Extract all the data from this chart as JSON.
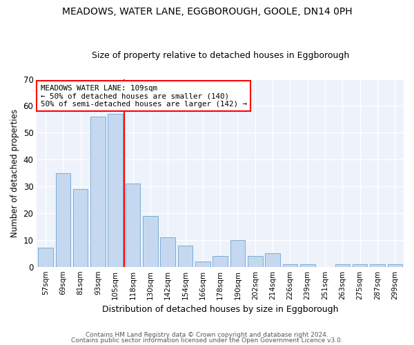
{
  "title_line1": "MEADOWS, WATER LANE, EGGBOROUGH, GOOLE, DN14 0PH",
  "title_line2": "Size of property relative to detached houses in Eggborough",
  "xlabel": "Distribution of detached houses by size in Eggborough",
  "ylabel": "Number of detached properties",
  "categories": [
    "57sqm",
    "69sqm",
    "81sqm",
    "93sqm",
    "105sqm",
    "118sqm",
    "130sqm",
    "142sqm",
    "154sqm",
    "166sqm",
    "178sqm",
    "190sqm",
    "202sqm",
    "214sqm",
    "226sqm",
    "239sqm",
    "251sqm",
    "263sqm",
    "275sqm",
    "287sqm",
    "299sqm"
  ],
  "values": [
    7,
    35,
    29,
    56,
    57,
    31,
    19,
    11,
    8,
    2,
    4,
    10,
    4,
    5,
    1,
    1,
    0,
    1,
    1,
    1,
    1
  ],
  "bar_color": "#c5d8f0",
  "bar_edge_color": "#7aadd4",
  "red_line_label": "MEADOWS WATER LANE: 109sqm",
  "annotation_line2": "← 50% of detached houses are smaller (140)",
  "annotation_line3": "50% of semi-detached houses are larger (142) →",
  "background_color": "#eef2fb",
  "grid_color": "#ffffff",
  "ylim": [
    0,
    70
  ],
  "yticks": [
    0,
    10,
    20,
    30,
    40,
    50,
    60,
    70
  ],
  "footnote_line1": "Contains HM Land Registry data © Crown copyright and database right 2024.",
  "footnote_line2": "Contains public sector information licensed under the Open Government Licence v3.0."
}
